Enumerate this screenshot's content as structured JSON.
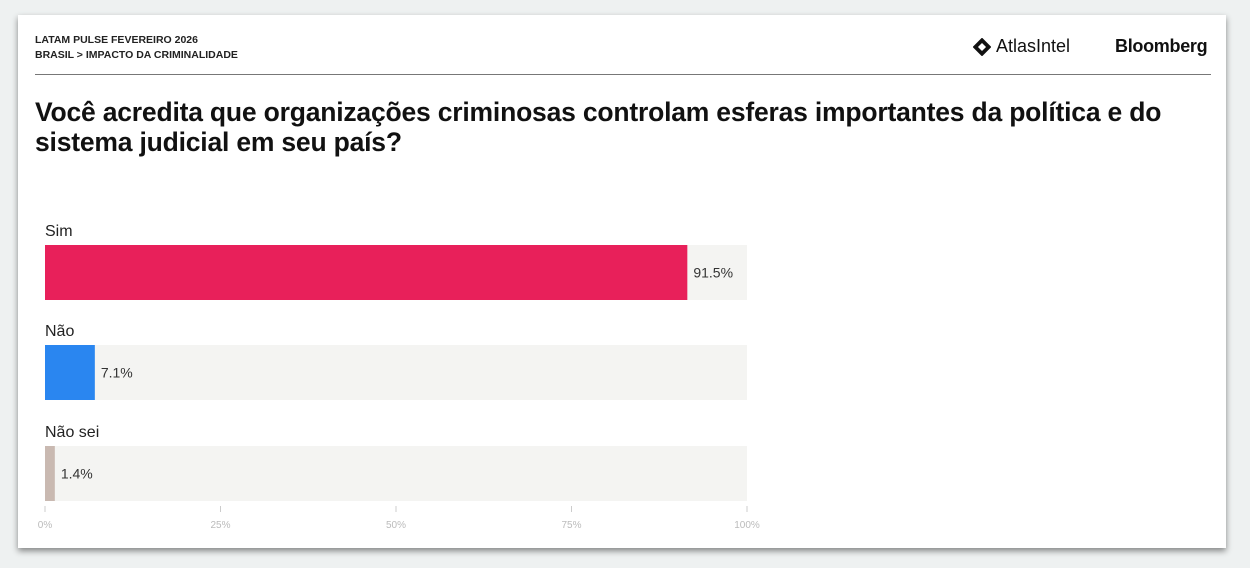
{
  "header": {
    "survey": "LATAM PULSE FEVEREIRO 2026",
    "breadcrumb": "BRASIL > IMPACTO DA CRIMINALIDADE",
    "brand_atlas": "AtlasIntel",
    "brand_bloomberg": "Bloomberg"
  },
  "chart_data": {
    "type": "bar",
    "orientation": "horizontal",
    "title": "Você acredita que organizações criminosas controlam esferas importantes da política e do sistema judicial em seu país?",
    "categories": [
      "Sim",
      "Não",
      "Não sei"
    ],
    "values": [
      91.5,
      7.1,
      1.4
    ],
    "value_labels": [
      "91.5%",
      "7.1%",
      "1.4%"
    ],
    "colors": [
      "#e8205a",
      "#2a86f0",
      "#c9b9b1"
    ],
    "track_color": "#f4f4f2",
    "xlim": [
      0,
      100
    ],
    "xticks": [
      0,
      25,
      50,
      75,
      100
    ],
    "xtick_labels": [
      "0%",
      "25%",
      "50%",
      "75%",
      "100%"
    ],
    "grid": false
  }
}
